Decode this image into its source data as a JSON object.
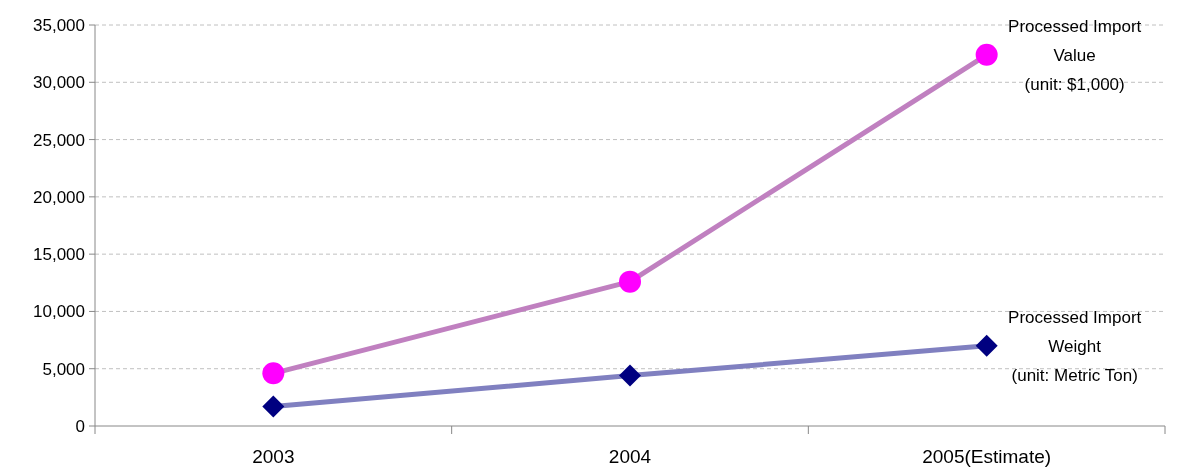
{
  "chart_data": {
    "type": "line",
    "categories": [
      "2003",
      "2004",
      "2005(Estimate)"
    ],
    "series": [
      {
        "name": "Processed Import\nValue\n(unit: $1,000)",
        "color": "#c080c0",
        "colors": [
          "#ff00ff",
          "#ff00ff",
          "#ff00ff"
        ],
        "marker": "circle",
        "values": [
          4600,
          12600,
          32400
        ]
      },
      {
        "name": "Processed Import\nWeight\n(unit: Metric Ton)",
        "color": "#8080c0",
        "colors": [
          "#000080",
          "#000080",
          "#000080"
        ],
        "marker": "diamond",
        "values": [
          1700,
          4400,
          7000
        ]
      }
    ],
    "ylim": [
      0,
      35000
    ],
    "yticks": [
      {
        "value": 0,
        "label": "0"
      },
      {
        "value": 5000,
        "label": "5,000"
      },
      {
        "value": 10000,
        "label": "10,000"
      },
      {
        "value": 15000,
        "label": "15,000"
      },
      {
        "value": 20000,
        "label": "20,000"
      },
      {
        "value": 25000,
        "label": "25,000"
      },
      {
        "value": 30000,
        "label": "30,000"
      },
      {
        "value": 35000,
        "label": "35,000"
      }
    ],
    "grid": "y"
  }
}
